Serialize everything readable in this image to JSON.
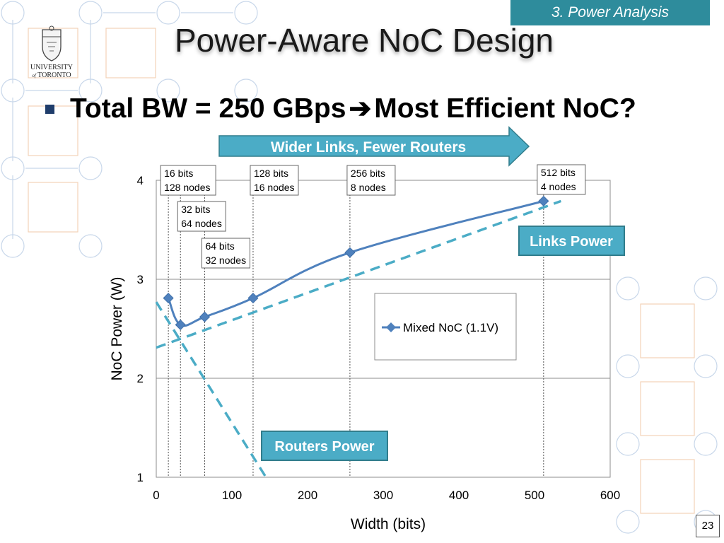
{
  "header": {
    "section": "3. Power Analysis",
    "title": "Power-Aware NoC Design"
  },
  "logo": {
    "line1": "UNIVERSITY",
    "line2_a": "of",
    "line2_b": "TORONTO"
  },
  "bullet": {
    "text_a": "Total BW = 250 GBps",
    "arrow": "➔",
    "text_b": "Most Efficient NoC?"
  },
  "callouts": {
    "wider": "Wider Links, Fewer Routers",
    "links": "Links Power",
    "routers": "Routers Power"
  },
  "page_number": "23",
  "colors": {
    "series": "#4f81bd",
    "accent": "#4bacc6",
    "callout_border": "#317d8c",
    "tab": "#2e8c9c"
  },
  "chart_data": {
    "type": "line",
    "xlabel": "Width (bits)",
    "ylabel": "NoC Power (W)",
    "xlim": [
      0,
      600
    ],
    "ylim": [
      1,
      4
    ],
    "xticks": [
      "0",
      "100",
      "200",
      "300",
      "400",
      "500",
      "600"
    ],
    "yticks": [
      "1",
      "2",
      "3",
      "4"
    ],
    "grid": "horizontal",
    "legend": "right-middle",
    "series": [
      {
        "name": "Mixed NoC (1.1V)",
        "x": [
          16,
          32,
          64,
          128,
          256,
          512
        ],
        "y": [
          2.81,
          2.54,
          2.62,
          2.81,
          3.27,
          3.79
        ]
      }
    ],
    "annotations": [
      {
        "x": 16,
        "l1": "16 bits",
        "l2": "128 nodes"
      },
      {
        "x": 32,
        "l1": "32 bits",
        "l2": "64 nodes"
      },
      {
        "x": 64,
        "l1": "64 bits",
        "l2": "32 nodes"
      },
      {
        "x": 128,
        "l1": "128 bits",
        "l2": "16 nodes"
      },
      {
        "x": 256,
        "l1": "256 bits",
        "l2": "8 nodes"
      },
      {
        "x": 512,
        "l1": "512 bits",
        "l2": "4 nodes"
      }
    ],
    "trend_lines": [
      {
        "x": [
          0,
          535
        ],
        "y": [
          2.31,
          3.79
        ]
      },
      {
        "x": [
          0,
          145
        ],
        "y": [
          2.77,
          1.0
        ]
      }
    ]
  }
}
